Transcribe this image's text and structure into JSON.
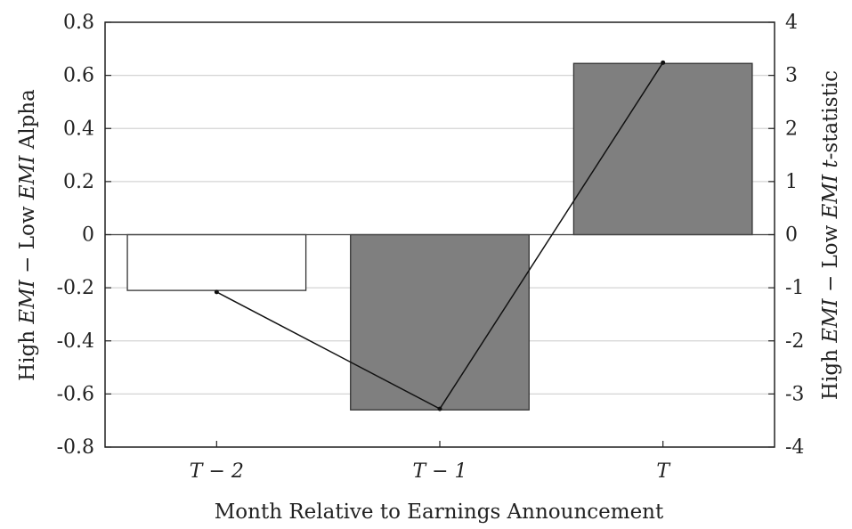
{
  "chart_data": {
    "type": "bar",
    "categories": [
      "T − 2",
      "T − 1",
      "T"
    ],
    "values": [
      -0.21,
      -0.66,
      0.645
    ],
    "fills": [
      "#ffffff",
      "#7f7f7f",
      "#7f7f7f"
    ],
    "line": {
      "values": [
        -1.08,
        -3.28,
        3.24
      ],
      "color": "#111111"
    },
    "xlabel": "Month Relative to Earnings Announcement",
    "ylabel_left": {
      "pre": "High ",
      "emi1": "EMI",
      "mid": " − Low ",
      "emi2": "EMI",
      "post": " Alpha"
    },
    "ylabel_right": {
      "pre": "High ",
      "emi1": "EMI",
      "mid": " − Low ",
      "emi2": "EMI",
      "t": "t",
      "post": "-statistic"
    },
    "ylim": [
      -0.8,
      0.8
    ],
    "yticks": [
      0.8,
      0.6,
      0.4,
      0.2,
      0,
      -0.2,
      -0.4,
      -0.6,
      -0.8
    ],
    "ytick_labels": [
      "0.8",
      "0.6",
      "0.4",
      "0.2",
      "0",
      "-0.2",
      "-0.4",
      "-0.6",
      "-0.8"
    ],
    "y2lim": [
      -4,
      4
    ],
    "y2ticks": [
      4,
      3,
      2,
      1,
      0,
      -1,
      -2,
      -3,
      -4
    ],
    "y2tick_labels": [
      "4",
      "3",
      "2",
      "1",
      "0",
      "-1",
      "-2",
      "-3",
      "-4"
    ],
    "grid": true
  }
}
